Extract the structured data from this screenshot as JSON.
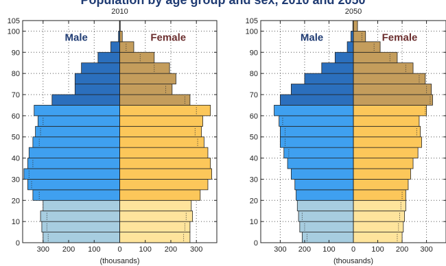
{
  "header": {
    "title": "Population by age group and sex, 2010 and 2050"
  },
  "colors": {
    "male": [
      "#a7cde0",
      "#3fa0f0",
      "#2b6fbd"
    ],
    "female": [
      "#fee49c",
      "#fcc75a",
      "#c49d5c"
    ],
    "male_label": "#1f3b73",
    "female_label": "#6b2e2e"
  },
  "chart_data": [
    {
      "type": "bar",
      "orientation": "horizontal",
      "title": "2010",
      "xlabel": "(thousands)",
      "male_label": "Male",
      "female_label": "Female",
      "xlim": [
        -380,
        380
      ],
      "ylim": [
        0,
        105
      ],
      "xticks": [
        -300,
        -200,
        -100,
        0,
        100,
        200,
        300
      ],
      "xtick_labels": [
        "300",
        "200",
        "100",
        "0",
        "100",
        "200",
        "300"
      ],
      "yticks": [
        0,
        10,
        20,
        30,
        40,
        50,
        60,
        70,
        80,
        90,
        100,
        105
      ],
      "age_groups": [
        "0-4",
        "5-9",
        "10-14",
        "15-19",
        "20-24",
        "25-29",
        "30-34",
        "35-39",
        "40-44",
        "45-49",
        "50-54",
        "55-59",
        "60-64",
        "65-69",
        "70-74",
        "75-79",
        "80-84",
        "85-89",
        "90-94",
        "95-99",
        "100+"
      ],
      "color_band": [
        0,
        0,
        0,
        0,
        1,
        1,
        1,
        1,
        1,
        1,
        1,
        1,
        1,
        2,
        2,
        2,
        2,
        2,
        2,
        2,
        2
      ],
      "series": [
        {
          "name": "Male",
          "values": [
            300,
            305,
            310,
            300,
            340,
            360,
            375,
            360,
            355,
            340,
            330,
            320,
            335,
            265,
            175,
            175,
            150,
            85,
            35,
            5,
            1
          ]
        },
        {
          "name": "Female",
          "values": [
            275,
            275,
            285,
            280,
            315,
            345,
            360,
            355,
            345,
            330,
            320,
            325,
            355,
            275,
            205,
            220,
            195,
            135,
            55,
            10,
            2
          ]
        }
      ],
      "markers": {
        "male": [
          280,
          285,
          285,
          null,
          315,
          345,
          355,
          340,
          null,
          315,
          310,
          300,
          null,
          null,
          null,
          null,
          null,
          null,
          null,
          null,
          null
        ],
        "female": [
          250,
          255,
          260,
          null,
          null,
          null,
          null,
          null,
          null,
          305,
          295,
          null,
          300,
          255,
          180,
          null,
          135,
          80,
          25,
          null,
          null
        ]
      }
    },
    {
      "type": "bar",
      "orientation": "horizontal",
      "title": "2050",
      "xlabel": "(thousands)",
      "male_label": "Male",
      "female_label": "Female",
      "xlim": [
        -380,
        380
      ],
      "ylim": [
        0,
        105
      ],
      "xticks": [
        -300,
        -200,
        -100,
        0,
        100,
        200,
        300
      ],
      "xtick_labels": [
        "300",
        "200",
        "100",
        "0",
        "100",
        "200",
        "300"
      ],
      "yticks": [
        0,
        10,
        20,
        30,
        40,
        50,
        60,
        70,
        80,
        90,
        100,
        105
      ],
      "age_groups": [
        "0-4",
        "5-9",
        "10-14",
        "15-19",
        "20-24",
        "25-29",
        "30-34",
        "35-39",
        "40-44",
        "45-49",
        "50-54",
        "55-59",
        "60-64",
        "65-69",
        "70-74",
        "75-79",
        "80-84",
        "85-89",
        "90-94",
        "95-99",
        "100+"
      ],
      "color_band": [
        0,
        0,
        0,
        0,
        1,
        1,
        1,
        1,
        1,
        1,
        1,
        1,
        1,
        2,
        2,
        2,
        2,
        2,
        2,
        2,
        2
      ],
      "series": [
        {
          "name": "Male",
          "values": [
            210,
            220,
            225,
            230,
            235,
            240,
            255,
            270,
            285,
            300,
            300,
            305,
            325,
            300,
            255,
            200,
            130,
            75,
            25,
            10,
            2
          ]
        },
        {
          "name": "Female",
          "values": [
            200,
            205,
            210,
            215,
            215,
            225,
            235,
            245,
            265,
            280,
            275,
            270,
            300,
            325,
            320,
            295,
            245,
            180,
            110,
            50,
            17
          ]
        }
      ],
      "markers": {
        "male": [
          190,
          200,
          210,
          null,
          null,
          null,
          null,
          null,
          265,
          280,
          280,
          290,
          null,
          null,
          null,
          null,
          null,
          null,
          null,
          null,
          null
        ],
        "female": [
          180,
          185,
          190,
          195,
          200,
          null,
          null,
          null,
          null,
          null,
          260,
          null,
          295,
          315,
          300,
          270,
          215,
          150,
          85,
          35,
          null
        ]
      }
    }
  ]
}
